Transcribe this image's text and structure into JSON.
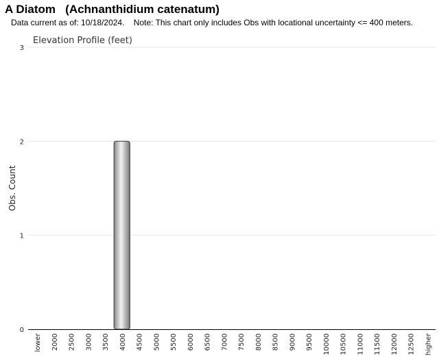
{
  "header": {
    "title": "A Diatom   (Achnanthidium catenatum)",
    "note": "Data current as of: 10/18/2024.    Note: This chart only includes Obs with locational uncertainty <= 400 meters."
  },
  "chart_data": {
    "type": "bar",
    "title": "Elevation Profile (feet)",
    "xlabel": "",
    "ylabel": "Obs. Count",
    "categories": [
      "lower",
      "2000",
      "2500",
      "3000",
      "3500",
      "4000",
      "4500",
      "5000",
      "5500",
      "6000",
      "6500",
      "7000",
      "7500",
      "8000",
      "8500",
      "9000",
      "9500",
      "10000",
      "10500",
      "11000",
      "11500",
      "12000",
      "12500",
      "higher"
    ],
    "values": [
      0,
      0,
      0,
      0,
      0,
      2,
      0,
      0,
      0,
      0,
      0,
      0,
      0,
      0,
      0,
      0,
      0,
      0,
      0,
      0,
      0,
      0,
      0,
      0
    ],
    "ylim": [
      0,
      3
    ],
    "yticks": [
      0,
      1,
      2,
      3
    ],
    "grid": true,
    "legend": "none",
    "colors": {
      "bar_fill": "#bdbdbd",
      "bar_stroke": "#444444",
      "gridline": "#e6e6e6",
      "axis": "#000000"
    }
  }
}
